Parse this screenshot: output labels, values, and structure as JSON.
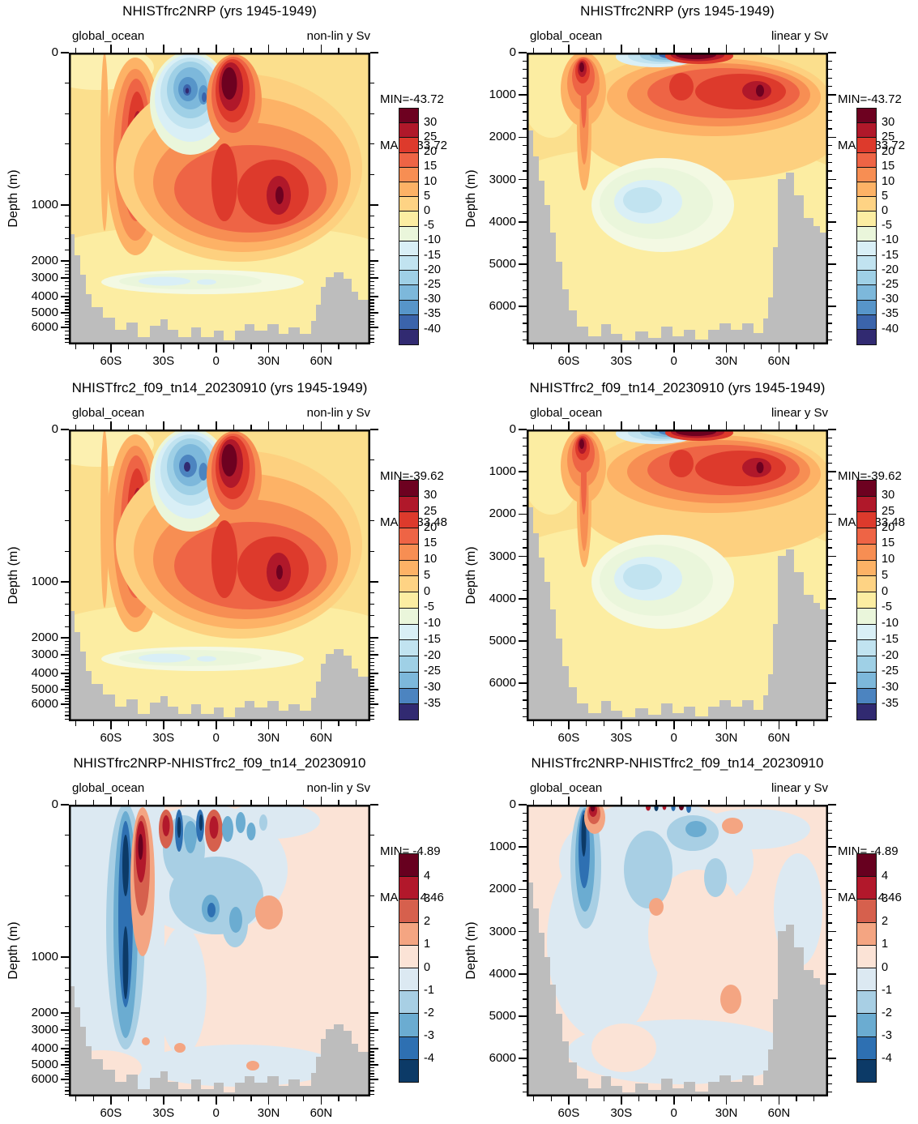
{
  "figure": {
    "background": "#FFFFFF",
    "land_color": "#BDBDBD",
    "frame_color": "#000000",
    "description": "Six-panel global ocean meridional overturning streamfunction sections (depth vs latitude), filled contours in Sv; left column non-linear depth axis, right column linear depth axis; gray shading is bathymetry."
  },
  "chart_data": [
    {
      "panel": "top-left",
      "type": "heatmap",
      "title": "NHISTfrc2NRP (yrs 1945-1949)",
      "region_label": "global_ocean",
      "yscale_label": "non-lin y Sv",
      "units": "Sv",
      "stats": {
        "min_label": "MIN=-43.72",
        "max_label": "MAX= 33.72",
        "min": -43.72,
        "max": 33.72
      },
      "xaxis": {
        "tick_labels": [
          "60S",
          "30S",
          "0",
          "30N",
          "60N"
        ],
        "tick_lats": [
          -60,
          -30,
          0,
          30,
          60
        ],
        "lat_range": [
          -84,
          88
        ]
      },
      "yaxis": {
        "label": "Depth (m)",
        "type": "non-linear",
        "tick_labels": [
          "0",
          "1000",
          "2000",
          "3000",
          "4000",
          "5000",
          "6000"
        ],
        "tick_values": [
          0,
          1000,
          2000,
          3000,
          4000,
          5000,
          6000
        ],
        "max_depth_m": 6900
      },
      "colorbar": {
        "tick_labels": [
          "30",
          "25",
          "20",
          "15",
          "10",
          "5",
          "0",
          "-5",
          "-10",
          "-15",
          "-20",
          "-25",
          "-30",
          "-35",
          "-40"
        ],
        "colors": [
          "#6D0120",
          "#B0182A",
          "#DD3A2C",
          "#EE6445",
          "#F78E53",
          "#FDB266",
          "#FED384",
          "#FCEDA2",
          "#EAF6DB",
          "#D9EFF6",
          "#C1E3F0",
          "#9FD0E6",
          "#7DB8DB",
          "#5795C9",
          "#3B64AB",
          "#312A71"
        ]
      },
      "features": [
        "negative (blue) Deacon-like cell ~25S-0 above 500 m, core < -40 Sv",
        "strong positive maroon core ~5-10N near surface > 30 Sv",
        "positive red column ~50S upper 1500 m",
        "broad positive cell 30S-45N around 1000 m with core > 25 Sv near 35N",
        "weak negative pale band ~3000-3500 m south of equator"
      ]
    },
    {
      "panel": "top-right",
      "type": "heatmap",
      "title": "NHISTfrc2NRP (yrs 1945-1949)",
      "region_label": "global_ocean",
      "yscale_label": "linear y Sv",
      "units": "Sv",
      "stats": {
        "min_label": "MIN=-43.72",
        "max_label": "MAX= 33.72",
        "min": -43.72,
        "max": 33.72
      },
      "xaxis": {
        "tick_labels": [
          "60S",
          "30S",
          "0",
          "30N",
          "60N"
        ],
        "tick_lats": [
          -60,
          -30,
          0,
          30,
          60
        ],
        "lat_range": [
          -84,
          88
        ]
      },
      "yaxis": {
        "label": "Depth (m)",
        "type": "linear",
        "tick_labels": [
          "0",
          "1000",
          "2000",
          "3000",
          "4000",
          "5000",
          "6000"
        ],
        "tick_values": [
          0,
          1000,
          2000,
          3000,
          4000,
          5000,
          6000
        ],
        "max_depth_m": 6900
      },
      "colorbar": {
        "tick_labels": [
          "30",
          "25",
          "20",
          "15",
          "10",
          "5",
          "0",
          "-5",
          "-10",
          "-15",
          "-20",
          "-25",
          "-30",
          "-35",
          "-40"
        ],
        "colors": [
          "#6D0120",
          "#B0182A",
          "#DD3A2C",
          "#EE6445",
          "#F78E53",
          "#FDB266",
          "#FED384",
          "#FCEDA2",
          "#EAF6DB",
          "#D9EFF6",
          "#C1E3F0",
          "#9FD0E6",
          "#7DB8DB",
          "#5795C9",
          "#3B64AB",
          "#312A71"
        ]
      },
      "features": [
        "thin surface negative band 20S-0 and maroon positive band 0-15N",
        "positive plume at ~55S upper 2500 m",
        "broad positive cell 10S-60N 300-1800 m, maroon core near 35N ~900 m",
        "weak negative pool 30S-0 near 3000-4000 m"
      ]
    },
    {
      "panel": "middle-left",
      "type": "heatmap",
      "title": "NHISTfrc2_f09_tn14_20230910 (yrs 1945-1949)",
      "region_label": "global_ocean",
      "yscale_label": "non-lin y Sv",
      "units": "Sv",
      "stats": {
        "min_label": "MIN=-39.62",
        "max_label": "MAX= 33.48",
        "min": -39.62,
        "max": 33.48
      },
      "xaxis": {
        "tick_labels": [
          "60S",
          "30S",
          "0",
          "30N",
          "60N"
        ],
        "tick_lats": [
          -60,
          -30,
          0,
          30,
          60
        ],
        "lat_range": [
          -84,
          88
        ]
      },
      "yaxis": {
        "label": "Depth (m)",
        "type": "non-linear",
        "tick_labels": [
          "0",
          "1000",
          "2000",
          "3000",
          "4000",
          "5000",
          "6000"
        ],
        "tick_values": [
          0,
          1000,
          2000,
          3000,
          4000,
          5000,
          6000
        ],
        "max_depth_m": 6900
      },
      "colorbar": {
        "tick_labels": [
          "30",
          "25",
          "20",
          "15",
          "10",
          "5",
          "0",
          "-5",
          "-10",
          "-15",
          "-20",
          "-25",
          "-30",
          "-35"
        ],
        "colors": [
          "#6D0120",
          "#B0182A",
          "#DD3A2C",
          "#EE6445",
          "#F78E53",
          "#FDB266",
          "#FED384",
          "#FCEDA2",
          "#EAF6DB",
          "#D9EFF6",
          "#C1E3F0",
          "#9FD0E6",
          "#7DB8DB",
          "#4C84C0",
          "#312A71"
        ]
      },
      "features": [
        "same pattern as NHISTfrc2NRP non-linear panel",
        "negative blue cell 25S-0 above 500 m, core < -35 Sv",
        "maroon positive core ~5-10N near surface",
        "broad positive cell around 1000 m, cores > 25 Sv"
      ]
    },
    {
      "panel": "middle-right",
      "type": "heatmap",
      "title": "NHISTfrc2_f09_tn14_20230910 (yrs 1945-1949)",
      "region_label": "global_ocean",
      "yscale_label": "linear y Sv",
      "units": "Sv",
      "stats": {
        "min_label": "MIN=-39.62",
        "max_label": "MAX= 33.48",
        "min": -39.62,
        "max": 33.48
      },
      "xaxis": {
        "tick_labels": [
          "60S",
          "30S",
          "0",
          "30N",
          "60N"
        ],
        "tick_lats": [
          -60,
          -30,
          0,
          30,
          60
        ],
        "lat_range": [
          -84,
          88
        ]
      },
      "yaxis": {
        "label": "Depth (m)",
        "type": "linear",
        "tick_labels": [
          "0",
          "1000",
          "2000",
          "3000",
          "4000",
          "5000",
          "6000"
        ],
        "tick_values": [
          0,
          1000,
          2000,
          3000,
          4000,
          5000,
          6000
        ],
        "max_depth_m": 6900
      },
      "colorbar": {
        "tick_labels": [
          "30",
          "25",
          "20",
          "15",
          "10",
          "5",
          "0",
          "-5",
          "-10",
          "-15",
          "-20",
          "-25",
          "-30",
          "-35"
        ],
        "colors": [
          "#6D0120",
          "#B0182A",
          "#DD3A2C",
          "#EE6445",
          "#F78E53",
          "#FDB266",
          "#FED384",
          "#FCEDA2",
          "#EAF6DB",
          "#D9EFF6",
          "#C1E3F0",
          "#9FD0E6",
          "#7DB8DB",
          "#4C84C0",
          "#312A71"
        ]
      },
      "features": [
        "thin surface negative band 20S-0 and maroon positive band 0-15N",
        "positive plume at ~55S",
        "broad positive cell 10S-60N 300-1800 m",
        "weak negative pool 30S-0 near 3000-4000 m"
      ]
    },
    {
      "panel": "bottom-left",
      "type": "heatmap",
      "title": "NHISTfrc2NRP-NHISTfrc2_f09_tn14_20230910",
      "region_label": "global_ocean",
      "yscale_label": "non-lin y Sv",
      "units": "Sv",
      "stats": {
        "min_label": "MIN= -4.89",
        "max_label": "MAX=  4.46",
        "min": -4.89,
        "max": 4.46
      },
      "xaxis": {
        "tick_labels": [
          "60S",
          "30S",
          "0",
          "30N",
          "60N"
        ],
        "tick_lats": [
          -60,
          -30,
          0,
          30,
          60
        ],
        "lat_range": [
          -84,
          88
        ]
      },
      "yaxis": {
        "label": "Depth (m)",
        "type": "non-linear",
        "tick_labels": [
          "0",
          "1000",
          "2000",
          "3000",
          "4000",
          "5000",
          "6000"
        ],
        "tick_values": [
          0,
          1000,
          2000,
          3000,
          4000,
          5000,
          6000
        ],
        "max_depth_m": 6900
      },
      "colorbar": {
        "tick_labels": [
          "4",
          "3",
          "2",
          "1",
          "0",
          "-1",
          "-2",
          "-3",
          "-4"
        ],
        "colors": [
          "#67001F",
          "#B2182B",
          "#D6604D",
          "#F4A582",
          "#FBE3D6",
          "#DCE9F2",
          "#A8CFE4",
          "#6BACD1",
          "#2E70B2",
          "#0C3A67"
        ]
      },
      "features": [
        "difference field, mostly within +/-1 Sv",
        "strong negative column ~52S full depth, < -4 Sv",
        "narrow positive column ~46S upper 1500 m, > 4 Sv",
        "alternating small +/- cells near surface 30S-10N",
        "negative patches 15S-0 at 300-700 m"
      ]
    },
    {
      "panel": "bottom-right",
      "type": "heatmap",
      "title": "NHISTfrc2NRP-NHISTfrc2_f09_tn14_20230910",
      "region_label": "global_ocean",
      "yscale_label": "linear y Sv",
      "units": "Sv",
      "stats": {
        "min_label": "MIN= -4.89",
        "max_label": "MAX=  4.46",
        "min": -4.89,
        "max": 4.46
      },
      "xaxis": {
        "tick_labels": [
          "60S",
          "30S",
          "0",
          "30N",
          "60N"
        ],
        "tick_lats": [
          -60,
          -30,
          0,
          30,
          60
        ],
        "lat_range": [
          -84,
          88
        ]
      },
      "yaxis": {
        "label": "Depth (m)",
        "type": "linear",
        "tick_labels": [
          "0",
          "1000",
          "2000",
          "3000",
          "4000",
          "5000",
          "6000"
        ],
        "tick_values": [
          0,
          1000,
          2000,
          3000,
          4000,
          5000,
          6000
        ],
        "max_depth_m": 6900
      },
      "colorbar": {
        "tick_labels": [
          "4",
          "3",
          "2",
          "1",
          "0",
          "-1",
          "-2",
          "-3",
          "-4"
        ],
        "colors": [
          "#67001F",
          "#B2182B",
          "#D6604D",
          "#F4A582",
          "#FBE3D6",
          "#DCE9F2",
          "#A8CFE4",
          "#6BACD1",
          "#2E70B2",
          "#0C3A67"
        ]
      },
      "features": [
        "difference field, mostly within +/-1 Sv",
        "negative streak ~52S upper 2500 m",
        "small strong +/- specks at the surface 30S-15N",
        "pale negative pools upper 1500 m near equator",
        "weak positive blob ~25N around 4500 m"
      ]
    }
  ]
}
